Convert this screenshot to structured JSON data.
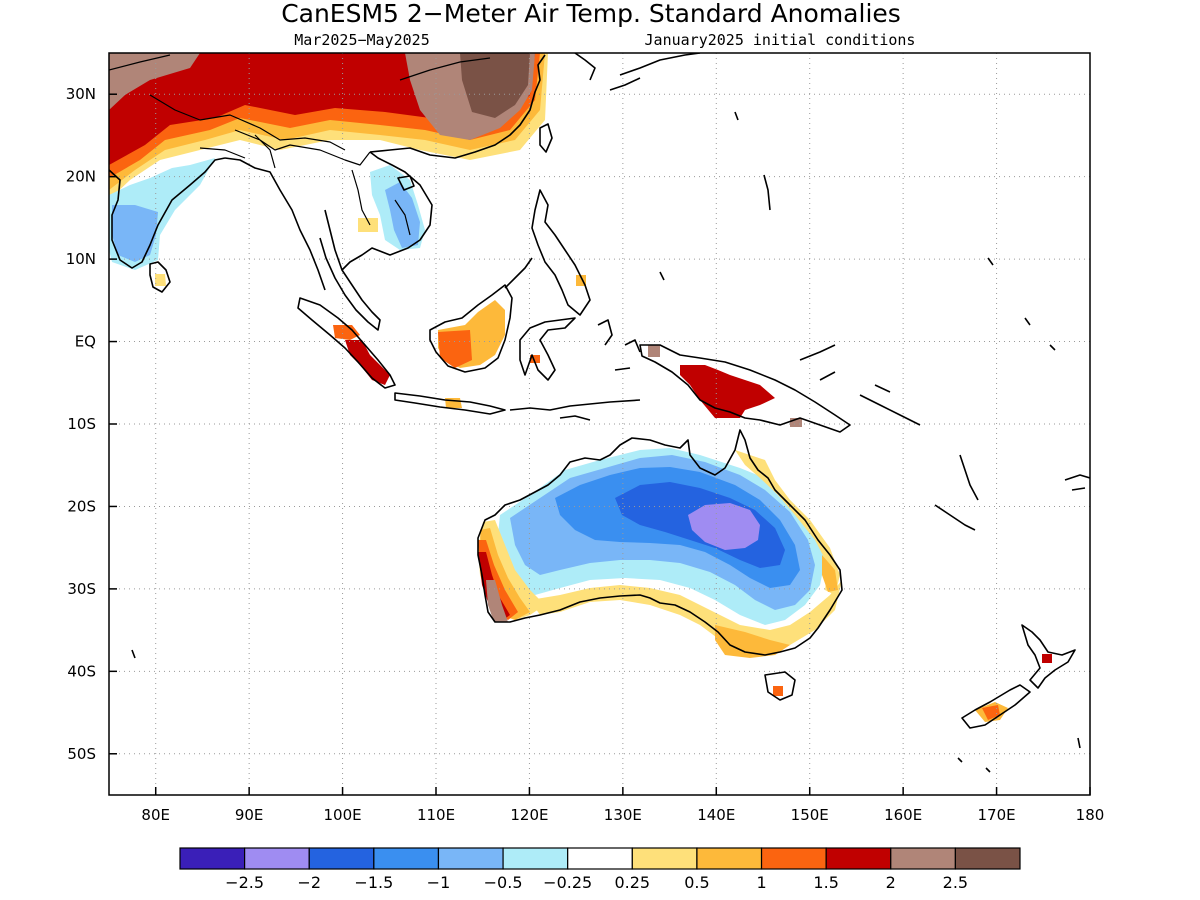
{
  "title": "CanESM5 2−Meter Air Temp. Standard Anomalies",
  "subtitle_left": "Mar2025−May2025",
  "subtitle_right": "January2025 initial conditions",
  "map": {
    "lon_range": [
      75,
      180
    ],
    "lat_range": [
      -55,
      35
    ],
    "x_ticks": [
      {
        "lon": 80,
        "label": "80E"
      },
      {
        "lon": 90,
        "label": "90E"
      },
      {
        "lon": 100,
        "label": "100E"
      },
      {
        "lon": 110,
        "label": "110E"
      },
      {
        "lon": 120,
        "label": "120E"
      },
      {
        "lon": 130,
        "label": "130E"
      },
      {
        "lon": 140,
        "label": "140E"
      },
      {
        "lon": 150,
        "label": "150E"
      },
      {
        "lon": 160,
        "label": "160E"
      },
      {
        "lon": 170,
        "label": "170E"
      },
      {
        "lon": 180,
        "label": "180"
      }
    ],
    "y_ticks": [
      {
        "lat": 30,
        "label": "30N"
      },
      {
        "lat": 20,
        "label": "20N"
      },
      {
        "lat": 10,
        "label": "10N"
      },
      {
        "lat": 0,
        "label": "EQ"
      },
      {
        "lat": -10,
        "label": "10S"
      },
      {
        "lat": -20,
        "label": "20S"
      },
      {
        "lat": -30,
        "label": "30S"
      },
      {
        "lat": -40,
        "label": "40S"
      },
      {
        "lat": -50,
        "label": "50S"
      }
    ],
    "grid": "dotted"
  },
  "colorbar": {
    "colors": [
      "#3a1fb8",
      "#9f8cf2",
      "#2463e0",
      "#3a8ff0",
      "#79b6f7",
      "#aeecf8",
      "#ffffff",
      "#fee07a",
      "#fdb93a",
      "#fb6410",
      "#c00000",
      "#b08578",
      "#7a5246"
    ],
    "labels": [
      "−2.5",
      "−2",
      "−1.5",
      "−1",
      "−0.5",
      "−0.25",
      "0.25",
      "0.5",
      "1",
      "1.5",
      "2",
      "2.5"
    ]
  }
}
